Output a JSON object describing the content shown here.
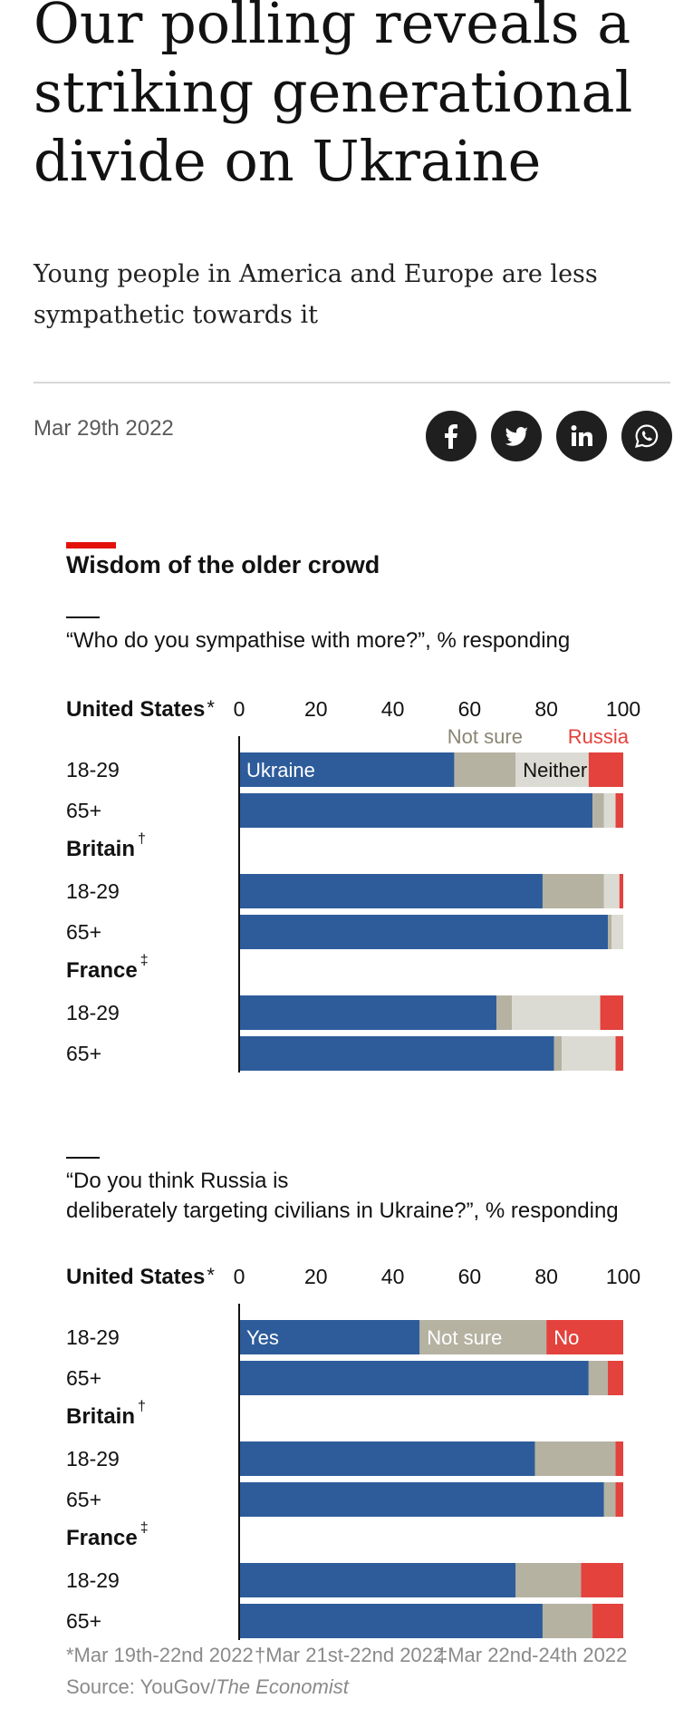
{
  "article": {
    "headline": "Our polling reveals a striking generational divide on Ukraine",
    "standfirst": "Young people in America and Europe are less sympathetic towards it",
    "date": "Mar 29th 2022",
    "share_icons": [
      "facebook-icon",
      "twitter-icon",
      "linkedin-icon",
      "whatsapp-icon"
    ]
  },
  "chart_data": {
    "type": "bar",
    "title": "Wisdom of the older crowd",
    "accent_color": "#e3120b",
    "colors": {
      "Ukraine": "#2e5c9a",
      "Yes": "#2e5c9a",
      "Not sure": "#b5b2a2",
      "Neither": "#dcdbd3",
      "Russia": "#e3423d",
      "No": "#e3423d"
    },
    "ticks": [
      "0",
      "20",
      "40",
      "60",
      "80",
      "100"
    ],
    "xlim": [
      0,
      100
    ],
    "panels": [
      {
        "question": "“Who do you sympathise with more?”, % responding",
        "segments": [
          "Ukraine",
          "Not sure",
          "Neither",
          "Russia"
        ],
        "groups": [
          {
            "country": "United States",
            "mark": "*",
            "rows": [
              {
                "age": "18-29",
                "values": [
                  56,
                  16,
                  19,
                  9
                ]
              },
              {
                "age": "65+",
                "values": [
                  92,
                  3,
                  3,
                  2
                ]
              }
            ]
          },
          {
            "country": "Britain",
            "mark": "†",
            "rows": [
              {
                "age": "18-29",
                "values": [
                  79,
                  16,
                  4,
                  1
                ]
              },
              {
                "age": "65+",
                "values": [
                  96,
                  1,
                  3,
                  0
                ]
              }
            ]
          },
          {
            "country": "France",
            "mark": "‡",
            "rows": [
              {
                "age": "18-29",
                "values": [
                  67,
                  4,
                  23,
                  6
                ]
              },
              {
                "age": "65+",
                "values": [
                  82,
                  2,
                  14,
                  2
                ]
              }
            ]
          }
        ]
      },
      {
        "question": "“Do you think Russia is deliberately targeting civilians in Ukraine?”, % responding",
        "segments": [
          "Yes",
          "Not sure",
          "No"
        ],
        "groups": [
          {
            "country": "United States",
            "mark": "*",
            "rows": [
              {
                "age": "18-29",
                "values": [
                  47,
                  33,
                  20
                ]
              },
              {
                "age": "65+",
                "values": [
                  91,
                  5,
                  4
                ]
              }
            ]
          },
          {
            "country": "Britain",
            "mark": "†",
            "rows": [
              {
                "age": "18-29",
                "values": [
                  77,
                  21,
                  2
                ]
              },
              {
                "age": "65+",
                "values": [
                  95,
                  3,
                  2
                ]
              }
            ]
          },
          {
            "country": "France",
            "mark": "‡",
            "rows": [
              {
                "age": "18-29",
                "values": [
                  72,
                  17,
                  11
                ]
              },
              {
                "age": "65+",
                "values": [
                  79,
                  13,
                  8
                ]
              }
            ]
          }
        ]
      }
    ],
    "footnotes": [
      "*Mar 19th-22nd 2022",
      "†Mar 21st-22nd 2022",
      "‡Mar 22nd-24th 2022"
    ],
    "source_prefix": "Source: YouGov/",
    "source_publication": "The Economist"
  }
}
